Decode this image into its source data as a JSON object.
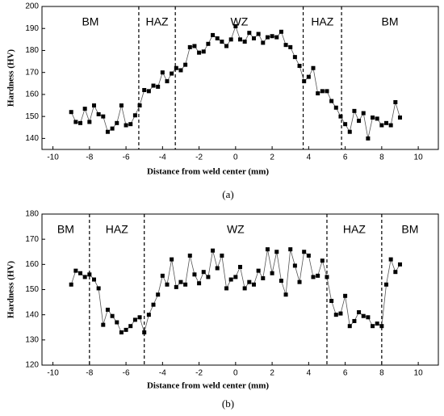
{
  "chart_data": [
    {
      "type": "line",
      "xlabel": "Distance from weld center (mm)",
      "ylabel": "Hardness (HV)",
      "caption": "(a)",
      "xlim": [
        -10.6,
        11.1
      ],
      "ylim": [
        135,
        200
      ],
      "xticks": [
        -10,
        -8,
        -6,
        -4,
        -2,
        0,
        2,
        4,
        6,
        8,
        10
      ],
      "yticks": [
        140,
        150,
        160,
        170,
        180,
        190,
        200
      ],
      "color": "#000000",
      "line_color": "#555555",
      "reference_lines": [
        -5.3,
        -3.3,
        3.7,
        5.8
      ],
      "regions": [
        "BM",
        "HAZ",
        "WZ",
        "HAZ",
        "BM"
      ],
      "x": [
        -9,
        -8.75,
        -8.5,
        -8.25,
        -8,
        -7.75,
        -7.5,
        -7.25,
        -7,
        -6.75,
        -6.5,
        -6.25,
        -6,
        -5.75,
        -5.5,
        -5.25,
        -5,
        -4.75,
        -4.5,
        -4.25,
        -4,
        -3.75,
        -3.5,
        -3.25,
        -3,
        -2.75,
        -2.5,
        -2.25,
        -2,
        -1.75,
        -1.5,
        -1.25,
        -1,
        -0.75,
        -0.5,
        -0.25,
        0,
        0.25,
        0.5,
        0.75,
        1,
        1.25,
        1.5,
        1.75,
        2,
        2.25,
        2.5,
        2.75,
        3,
        3.25,
        3.5,
        3.75,
        4,
        4.25,
        4.5,
        4.75,
        5,
        5.25,
        5.5,
        5.75,
        6,
        6.25,
        6.5,
        6.75,
        7,
        7.25,
        7.5,
        7.75,
        8,
        8.25,
        8.5,
        8.75,
        9
      ],
      "values": [
        152,
        147.5,
        147,
        153.5,
        147.5,
        155,
        151,
        150,
        143,
        144.5,
        147,
        155,
        146,
        146.5,
        150.5,
        155,
        162,
        161.5,
        164,
        163.5,
        170,
        166,
        169.5,
        172,
        171,
        173.5,
        181.5,
        182,
        179,
        179.5,
        183,
        187,
        185.5,
        184,
        182,
        185,
        191,
        185,
        184,
        188,
        185.5,
        187.5,
        183.5,
        186,
        186.5,
        186,
        188.5,
        182.5,
        181.5,
        177,
        173,
        166,
        168,
        172,
        160.5,
        161.5,
        161.5,
        157,
        154,
        150,
        146.5,
        143,
        152.5,
        148,
        151.5,
        140,
        149.5,
        149,
        146,
        147,
        146,
        156.5,
        149.5
      ]
    },
    {
      "type": "line",
      "xlabel": "Distance from weld center (mm)",
      "ylabel": "Hardness (HV)",
      "caption": "(b)",
      "xlim": [
        -10.6,
        11.1
      ],
      "ylim": [
        120,
        180
      ],
      "xticks": [
        -10,
        -8,
        -6,
        -4,
        -2,
        0,
        2,
        4,
        6,
        8,
        10
      ],
      "yticks": [
        120,
        130,
        140,
        150,
        160,
        170,
        180
      ],
      "color": "#000000",
      "line_color": "#555555",
      "reference_lines": [
        -8,
        -5,
        5,
        8
      ],
      "regions": [
        "BM",
        "HAZ",
        "WZ",
        "HAZ",
        "BM"
      ],
      "x": [
        -9,
        -8.75,
        -8.5,
        -8.25,
        -8,
        -7.75,
        -7.5,
        -7.25,
        -7,
        -6.75,
        -6.5,
        -6.25,
        -6,
        -5.75,
        -5.5,
        -5.25,
        -5,
        -4.75,
        -4.5,
        -4.25,
        -4,
        -3.75,
        -3.5,
        -3.25,
        -3,
        -2.75,
        -2.5,
        -2.25,
        -2,
        -1.75,
        -1.5,
        -1.25,
        -1,
        -0.75,
        -0.5,
        -0.25,
        0,
        0.25,
        0.5,
        0.75,
        1,
        1.25,
        1.5,
        1.75,
        2,
        2.25,
        2.5,
        2.75,
        3,
        3.25,
        3.5,
        3.75,
        4,
        4.25,
        4.5,
        4.75,
        5,
        5.25,
        5.5,
        5.75,
        6,
        6.25,
        6.5,
        6.75,
        7,
        7.25,
        7.5,
        7.75,
        8,
        8.25,
        8.5,
        8.75,
        9
      ],
      "values": [
        152,
        157.5,
        156.5,
        155,
        156,
        154,
        150.5,
        136,
        142,
        139.5,
        137,
        133,
        134,
        135.5,
        138,
        139,
        133,
        140,
        144,
        148,
        155.5,
        152,
        162,
        151,
        153,
        152,
        163.5,
        156,
        152.5,
        157,
        155,
        165.5,
        158.5,
        163.5,
        150.5,
        154,
        155,
        159,
        150.5,
        153,
        152,
        157.5,
        154.5,
        166,
        156.5,
        165,
        153.5,
        148,
        166,
        159.5,
        153,
        165,
        163.5,
        155,
        155.5,
        161.5,
        155,
        145.5,
        140,
        140.5,
        147.5,
        135.5,
        137.5,
        141,
        139.5,
        139,
        135.5,
        136.5,
        135.5,
        152,
        162,
        157,
        160
      ]
    }
  ]
}
